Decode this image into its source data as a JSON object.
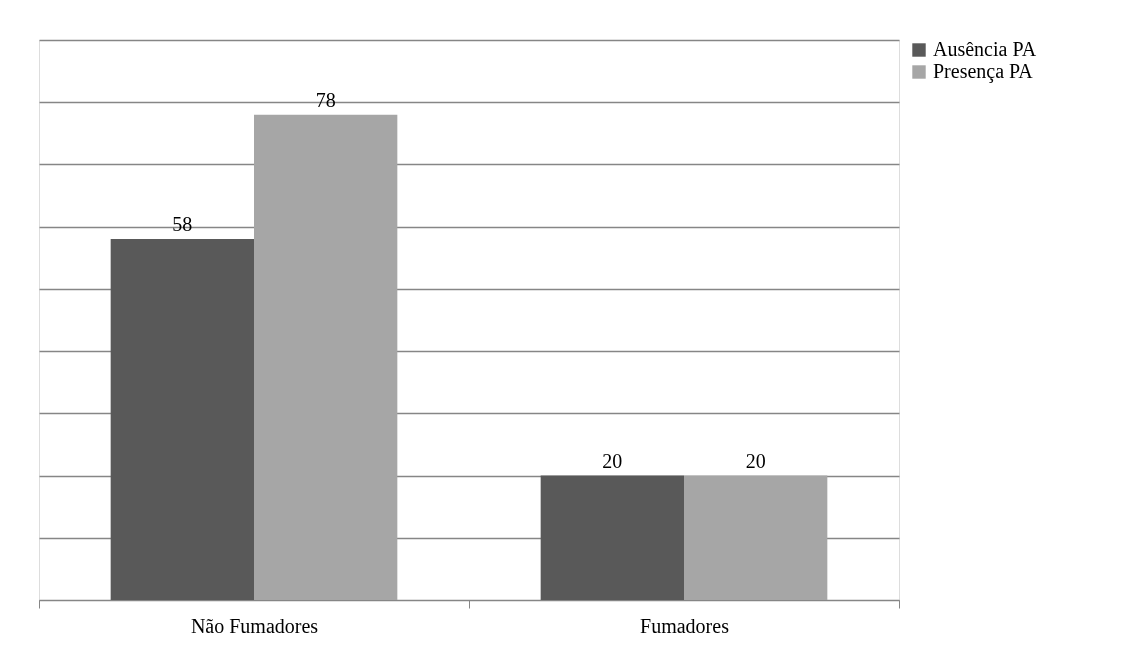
{
  "chart_data": {
    "type": "bar",
    "categories": [
      "Não Fumadores",
      "Fumadores"
    ],
    "series": [
      {
        "name": "Ausência PA",
        "color": "#595959",
        "values": [
          58,
          20
        ]
      },
      {
        "name": "Presença PA",
        "color": "#a6a6a6",
        "values": [
          78,
          20
        ]
      }
    ],
    "ylim": [
      0,
      90
    ],
    "yticks": [
      {
        "value": 0,
        "label": null
      },
      {
        "value": 10,
        "label": null
      },
      {
        "value": 20,
        "label": null
      },
      {
        "value": 30,
        "label": null
      },
      {
        "value": 40,
        "label": null
      },
      {
        "value": 50,
        "label": null
      },
      {
        "value": 60,
        "label": null
      },
      {
        "value": 70,
        "label": null
      },
      {
        "value": 80,
        "label": null
      },
      {
        "value": 90,
        "label": null
      }
    ],
    "grid": "y",
    "tick_labels": "x",
    "legend": "right",
    "data_labels": true
  }
}
